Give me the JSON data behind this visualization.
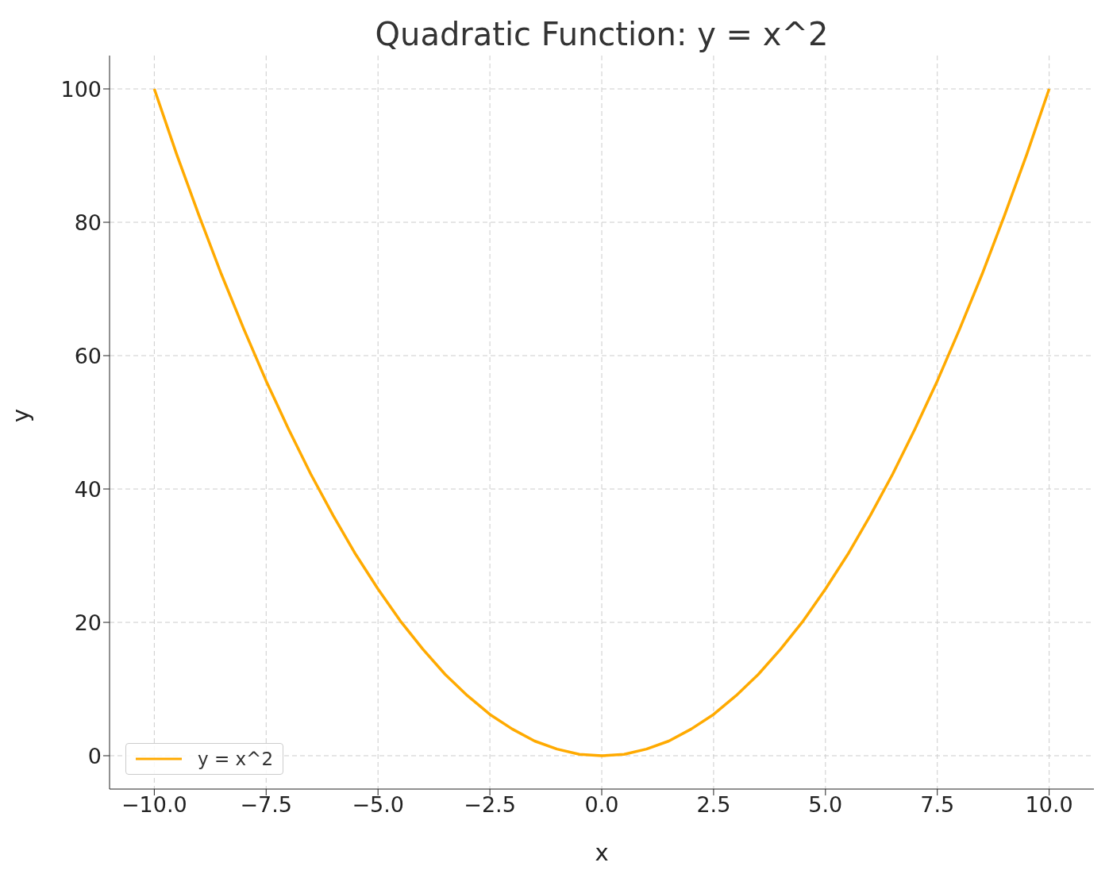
{
  "chart_data": {
    "type": "line",
    "title": "Quadratic Function: y = x^2",
    "xlabel": "x",
    "ylabel": "y",
    "x": [
      -10,
      -9.5,
      -9,
      -8.5,
      -8,
      -7.5,
      -7,
      -6.5,
      -6,
      -5.5,
      -5,
      -4.5,
      -4,
      -3.5,
      -3,
      -2.5,
      -2,
      -1.5,
      -1,
      -0.5,
      0,
      0.5,
      1,
      1.5,
      2,
      2.5,
      3,
      3.5,
      4,
      4.5,
      5,
      5.5,
      6,
      6.5,
      7,
      7.5,
      8,
      8.5,
      9,
      9.5,
      10
    ],
    "series": [
      {
        "name": "y = x^2",
        "color": "#ffaa00",
        "values": [
          100,
          90.2,
          81,
          72.2,
          64,
          56.2,
          49,
          42.2,
          36,
          30.2,
          25,
          20.2,
          16,
          12.2,
          9,
          6.2,
          4,
          2.2,
          1,
          0.2,
          0,
          0.2,
          1,
          2.2,
          4,
          6.2,
          9,
          12.2,
          16,
          20.2,
          25,
          30.2,
          36,
          42.2,
          49,
          56.2,
          64,
          72.2,
          81,
          90.2,
          100
        ]
      }
    ],
    "xlim": [
      -11,
      11
    ],
    "xticks": [
      {
        "value": -10,
        "label": "−10.0"
      },
      {
        "value": -7.5,
        "label": "−7.5"
      },
      {
        "value": -5,
        "label": "−5.0"
      },
      {
        "value": -2.5,
        "label": "−2.5"
      },
      {
        "value": 0,
        "label": "0.0"
      },
      {
        "value": 2.5,
        "label": "2.5"
      },
      {
        "value": 5,
        "label": "5.0"
      },
      {
        "value": 7.5,
        "label": "7.5"
      },
      {
        "value": 10,
        "label": "10.0"
      }
    ],
    "ylim": [
      -5,
      105
    ],
    "yticks": [
      0,
      20,
      40,
      60,
      80,
      100
    ],
    "grid": true,
    "legend": "bottom left",
    "marker": "none",
    "line_style": "solid"
  }
}
